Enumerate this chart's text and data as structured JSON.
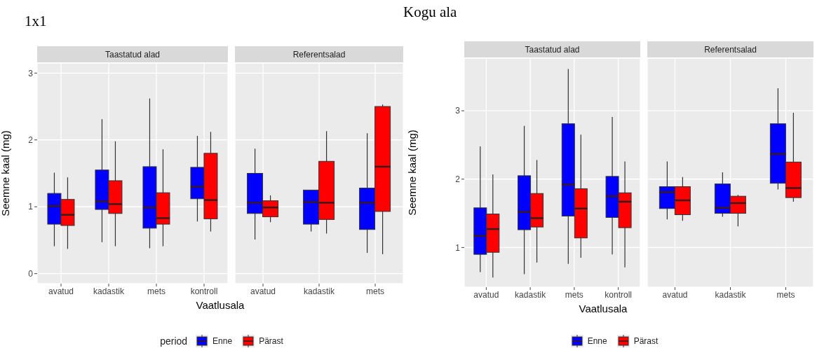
{
  "chart_data": [
    {
      "type": "box",
      "title": "1x1",
      "subtitle": "Taastatud alad",
      "xlabel": "Vaatlusala",
      "ylabel": "Seemne kaal (mg)",
      "legend_title": "period",
      "legend": "bottom",
      "grid": true,
      "categories": [
        "avatud",
        "kadastik",
        "mets",
        "kontroll"
      ],
      "ylim": [
        -0.15,
        3.15
      ],
      "yticks": [
        0,
        1,
        2,
        3
      ],
      "series": [
        {
          "name": "Enne",
          "color": "#0000ff",
          "boxes": [
            {
              "low": 0.41,
              "q1": 0.74,
              "median": 1.01,
              "q3": 1.2,
              "high": 1.51
            },
            {
              "low": 0.47,
              "q1": 0.96,
              "median": 1.08,
              "q3": 1.55,
              "high": 2.31
            },
            {
              "low": 0.38,
              "q1": 0.68,
              "median": 0.99,
              "q3": 1.6,
              "high": 2.62
            },
            {
              "low": 0.78,
              "q1": 1.12,
              "median": 1.3,
              "q3": 1.59,
              "high": 2.06
            }
          ]
        },
        {
          "name": "Pärast",
          "color": "#ff0000",
          "boxes": [
            {
              "low": 0.37,
              "q1": 0.72,
              "median": 0.88,
              "q3": 1.11,
              "high": 1.44
            },
            {
              "low": 0.41,
              "q1": 0.9,
              "median": 1.04,
              "q3": 1.39,
              "high": 1.98
            },
            {
              "low": 0.41,
              "q1": 0.74,
              "median": 0.83,
              "q3": 1.21,
              "high": 1.86
            },
            {
              "low": 0.63,
              "q1": 0.82,
              "median": 1.1,
              "q3": 1.8,
              "high": 2.12
            }
          ]
        }
      ]
    },
    {
      "type": "box",
      "subtitle": "Referentsalad",
      "tick_labels": "x",
      "grid": true,
      "categories": [
        "avatud",
        "kadastik",
        "mets"
      ],
      "ylim": [
        -0.15,
        3.15
      ],
      "yticks": [
        0,
        1,
        2,
        3
      ],
      "series": [
        {
          "color": "#0000ff",
          "boxes": [
            {
              "low": 0.51,
              "q1": 0.9,
              "median": 1.06,
              "q3": 1.5,
              "high": 1.87
            },
            {
              "low": 0.63,
              "q1": 0.74,
              "median": 1.07,
              "q3": 1.25,
              "high": 1.25
            },
            {
              "low": 0.31,
              "q1": 0.66,
              "median": 1.06,
              "q3": 1.28,
              "high": 2.1
            }
          ]
        },
        {
          "color": "#ff0000",
          "boxes": [
            {
              "low": 0.77,
              "q1": 0.85,
              "median": 0.99,
              "q3": 1.09,
              "high": 1.17
            },
            {
              "low": 0.6,
              "q1": 0.81,
              "median": 1.06,
              "q3": 1.68,
              "high": 2.13
            },
            {
              "low": 0.29,
              "q1": 0.93,
              "median": 1.6,
              "q3": 2.5,
              "high": 2.53
            }
          ]
        }
      ]
    },
    {
      "type": "box",
      "title": "Kogu ala",
      "subtitle": "Taastatud alad",
      "xlabel": "Vaatlusala",
      "ylabel": "Seemne kaal (mg)",
      "legend": "bottom",
      "grid": true,
      "categories": [
        "avatud",
        "kadastik",
        "mets",
        "kontroll"
      ],
      "ylim": [
        0.42,
        3.77
      ],
      "yticks": [
        1,
        2,
        3
      ],
      "series": [
        {
          "name": "Enne",
          "color": "#0000ff",
          "boxes": [
            {
              "low": 0.64,
              "q1": 0.9,
              "median": 1.17,
              "q3": 1.58,
              "high": 2.48
            },
            {
              "low": 0.61,
              "q1": 1.26,
              "median": 1.52,
              "q3": 2.05,
              "high": 2.78
            },
            {
              "low": 0.76,
              "q1": 1.46,
              "median": 1.92,
              "q3": 2.81,
              "high": 3.61
            },
            {
              "low": 0.9,
              "q1": 1.44,
              "median": 1.75,
              "q3": 2.04,
              "high": 2.91
            }
          ]
        },
        {
          "name": "Pärast",
          "color": "#ff0000",
          "boxes": [
            {
              "low": 0.56,
              "q1": 0.93,
              "median": 1.27,
              "q3": 1.49,
              "high": 2.07
            },
            {
              "low": 0.78,
              "q1": 1.3,
              "median": 1.43,
              "q3": 1.79,
              "high": 2.28
            },
            {
              "low": 0.85,
              "q1": 1.14,
              "median": 1.57,
              "q3": 1.86,
              "high": 2.65
            },
            {
              "low": 0.71,
              "q1": 1.29,
              "median": 1.67,
              "q3": 1.8,
              "high": 2.26
            }
          ]
        }
      ]
    },
    {
      "type": "box",
      "subtitle": "Referentsalad",
      "tick_labels": "x",
      "grid": true,
      "categories": [
        "avatud",
        "kadastik",
        "mets"
      ],
      "ylim": [
        0.42,
        3.77
      ],
      "yticks": [
        1,
        2,
        3
      ],
      "series": [
        {
          "color": "#0000ff",
          "boxes": [
            {
              "low": 1.41,
              "q1": 1.57,
              "median": 1.81,
              "q3": 1.89,
              "high": 2.26
            },
            {
              "low": 1.45,
              "q1": 1.5,
              "median": 1.58,
              "q3": 1.93,
              "high": 2.1
            },
            {
              "low": 1.85,
              "q1": 1.94,
              "median": 2.37,
              "q3": 2.81,
              "high": 3.33
            }
          ]
        },
        {
          "color": "#ff0000",
          "boxes": [
            {
              "low": 1.39,
              "q1": 1.48,
              "median": 1.69,
              "q3": 1.89,
              "high": 2.03
            },
            {
              "low": 1.31,
              "q1": 1.5,
              "median": 1.65,
              "q3": 1.75,
              "high": 1.77
            },
            {
              "low": 1.67,
              "q1": 1.73,
              "median": 1.87,
              "q3": 2.25,
              "high": 2.97
            }
          ]
        }
      ]
    }
  ]
}
